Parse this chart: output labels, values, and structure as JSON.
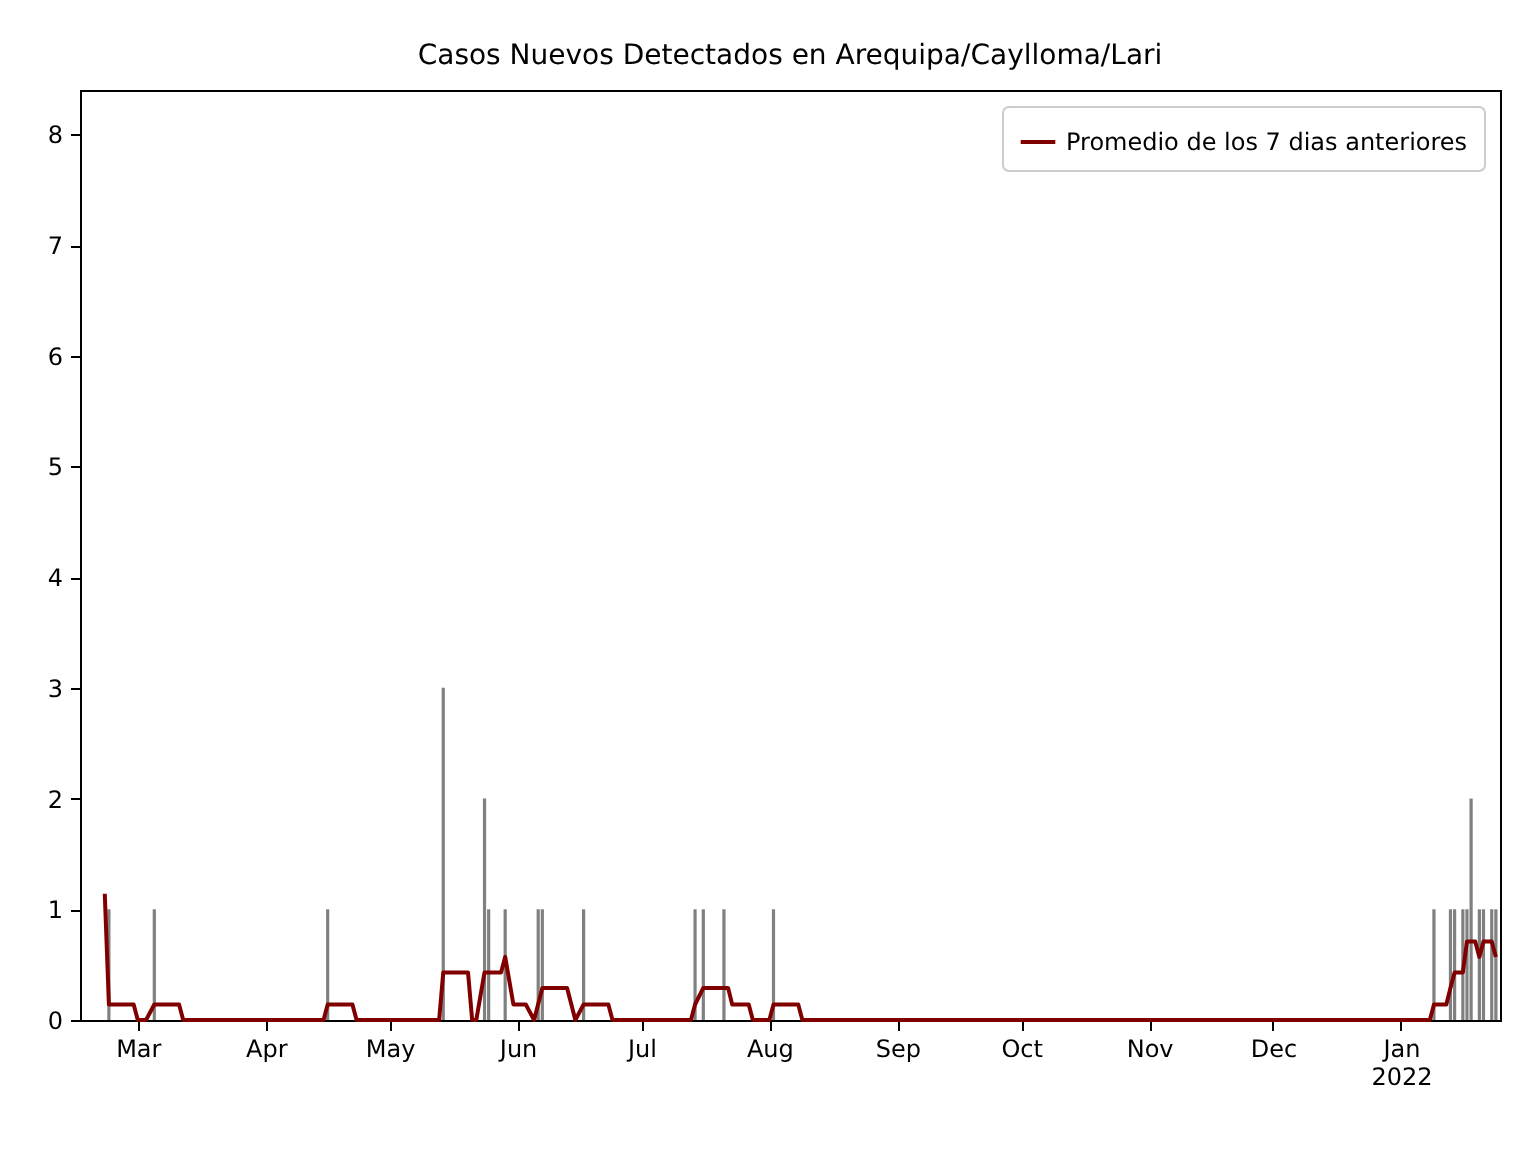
{
  "chart_data": {
    "type": "bar",
    "title": "Casos Nuevos Detectados en Arequipa/Caylloma/Lari",
    "xlim": [
      "2021-02-15",
      "2022-01-25"
    ],
    "xticks": [
      {
        "value": "2021-03-01",
        "label": "Mar"
      },
      {
        "value": "2021-04-01",
        "label": "Apr"
      },
      {
        "value": "2021-05-01",
        "label": "May"
      },
      {
        "value": "2021-06-01",
        "label": "Jun"
      },
      {
        "value": "2021-07-01",
        "label": "Jul"
      },
      {
        "value": "2021-08-01",
        "label": "Aug"
      },
      {
        "value": "2021-09-01",
        "label": "Sep"
      },
      {
        "value": "2021-10-01",
        "label": "Oct"
      },
      {
        "value": "2021-11-01",
        "label": "Nov"
      },
      {
        "value": "2021-12-01",
        "label": "Dec"
      },
      {
        "value": "2022-01-01",
        "label": "Jan\n2022"
      }
    ],
    "ylim": [
      0,
      8.4
    ],
    "yticks": [
      0,
      1,
      2,
      3,
      4,
      5,
      6,
      7,
      8
    ],
    "grid": false,
    "legend": "top right",
    "series": [
      {
        "color": "#808080",
        "x": [
          "2021-02-22",
          "2021-03-05",
          "2021-04-16",
          "2021-05-14",
          "2021-05-24",
          "2021-05-25",
          "2021-05-29",
          "2021-06-06",
          "2021-06-07",
          "2021-06-17",
          "2021-07-14",
          "2021-07-16",
          "2021-07-21",
          "2021-08-02",
          "2022-01-09",
          "2022-01-13",
          "2022-01-14",
          "2022-01-16",
          "2022-01-17",
          "2022-01-18",
          "2022-01-20",
          "2022-01-21",
          "2022-01-23",
          "2022-01-24"
        ],
        "values": [
          1,
          1,
          1,
          3,
          2,
          1,
          1,
          1,
          1,
          1,
          1,
          1,
          1,
          1,
          1,
          1,
          1,
          1,
          1,
          2,
          1,
          1,
          1,
          1
        ]
      },
      {
        "type": "line",
        "name": "Promedio de los 7 dias anteriores",
        "color": "#800000",
        "x": [
          "2021-02-21",
          "2021-02-22",
          "2021-02-28",
          "2021-03-01",
          "2021-03-03",
          "2021-03-05",
          "2021-03-11",
          "2021-03-12",
          "2021-04-15",
          "2021-04-16",
          "2021-04-22",
          "2021-04-23",
          "2021-05-13",
          "2021-05-14",
          "2021-05-20",
          "2021-05-21",
          "2021-05-22",
          "2021-05-24",
          "2021-05-28",
          "2021-05-29",
          "2021-05-31",
          "2021-06-03",
          "2021-06-05",
          "2021-06-07",
          "2021-06-13",
          "2021-06-15",
          "2021-06-17",
          "2021-06-23",
          "2021-06-24",
          "2021-07-13",
          "2021-07-14",
          "2021-07-16",
          "2021-07-22",
          "2021-07-23",
          "2021-07-27",
          "2021-07-28",
          "2021-08-01",
          "2021-08-02",
          "2021-08-08",
          "2021-08-09",
          "2022-01-08",
          "2022-01-09",
          "2022-01-12",
          "2022-01-13",
          "2022-01-14",
          "2022-01-16",
          "2022-01-17",
          "2022-01-19",
          "2022-01-20",
          "2022-01-21",
          "2022-01-23",
          "2022-01-24"
        ],
        "values": [
          1.14,
          0.14,
          0.14,
          0,
          0,
          0.14,
          0.14,
          0,
          0,
          0.14,
          0.14,
          0,
          0,
          0.43,
          0.43,
          0,
          0,
          0.43,
          0.43,
          0.57,
          0.14,
          0.14,
          0,
          0.29,
          0.29,
          0,
          0.14,
          0.14,
          0,
          0,
          0.14,
          0.29,
          0.29,
          0.14,
          0.14,
          0,
          0,
          0.14,
          0.14,
          0,
          0,
          0.14,
          0.14,
          0.29,
          0.43,
          0.43,
          0.71,
          0.71,
          0.57,
          0.71,
          0.71,
          0.57
        ]
      }
    ]
  }
}
